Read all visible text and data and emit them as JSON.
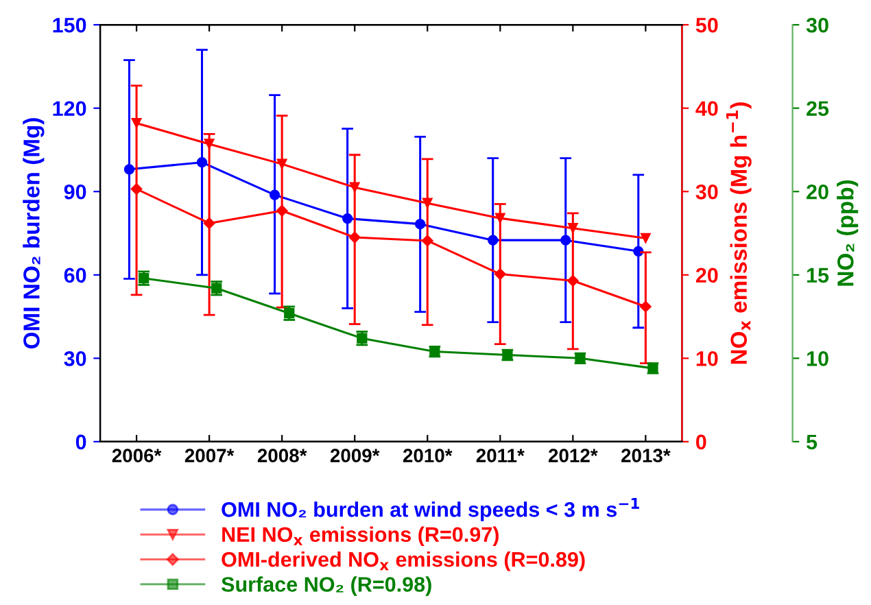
{
  "chart_data": {
    "type": "line",
    "categories": [
      "2006*",
      "2007*",
      "2008*",
      "2009*",
      "2010*",
      "2011*",
      "2012*",
      "2013*"
    ],
    "ylabel": "OMI NO₂ burden (Mg)",
    "y2label": "NO$_{x}$ emissions (Mg h$^{−1}$)",
    "y3label": "NO₂ (ppb)",
    "ylim": [
      0,
      150
    ],
    "yticks": [
      0,
      30,
      60,
      90,
      120,
      150
    ],
    "y2lim": [
      0,
      50
    ],
    "y2ticks": [
      0,
      10,
      20,
      30,
      40,
      50
    ],
    "y3lim": [
      5,
      30
    ],
    "y3ticks": [
      5,
      10,
      15,
      20,
      25,
      30
    ],
    "legend": "bottom",
    "grid": false,
    "line_style": "solid",
    "series": [
      {
        "name": "OMI NO₂ burden at wind speeds < 3 m s$^{−1}$",
        "color": "#0000ff",
        "marker": "circle",
        "values": [
          98,
          100.5,
          88.8,
          80.3,
          78.3,
          72.5,
          72.5,
          68.5
        ],
        "errors": [
          [
            58.6,
            137.3
          ],
          [
            60,
            141
          ],
          [
            53.3,
            124.7
          ],
          [
            48,
            112.6
          ],
          [
            46.7,
            109.7
          ],
          [
            43,
            102
          ],
          [
            43,
            102
          ],
          [
            41,
            96
          ]
        ]
      },
      {
        "name": "NEI NO$_{x}$ emissions (R=0.97)",
        "color": "#ff0000",
        "marker": "triangle",
        "axis": "y2",
        "values": [
          38.2,
          35.7,
          33.3,
          30.5,
          28.6,
          26.8,
          25.6,
          24.4
        ]
      },
      {
        "name": "OMI-derived NO$_{x}$ emissions (R=0.89)",
        "color": "#ff0000",
        "marker": "diamond",
        "axis": "y2",
        "values": [
          30.3,
          26.2,
          27.7,
          24.5,
          24.1,
          20.1,
          19.3,
          16.2
        ],
        "errors": [
          [
            17.6,
            42.7
          ],
          [
            15.2,
            36.9
          ],
          [
            16.1,
            39.1
          ],
          [
            14.1,
            34.4
          ],
          [
            14,
            33.9
          ],
          [
            11.7,
            28.5
          ],
          [
            11.1,
            27.4
          ],
          [
            9.4,
            22.7
          ]
        ]
      },
      {
        "name": "Surface NO₂ (R=0.98)",
        "color": "#008000",
        "marker": "square",
        "axis": "y3",
        "values": [
          14.8,
          14.2,
          12.7,
          11.2,
          10.4,
          10.2,
          10,
          9.4
        ],
        "errors": [
          [
            14.4,
            15.2
          ],
          [
            13.8,
            14.6
          ],
          [
            12.3,
            13.1
          ],
          [
            10.8,
            11.6
          ],
          [
            10.1,
            10.7
          ],
          [
            9.9,
            10.5
          ],
          [
            9.7,
            10.3
          ],
          [
            9.1,
            9.7
          ]
        ]
      }
    ]
  }
}
